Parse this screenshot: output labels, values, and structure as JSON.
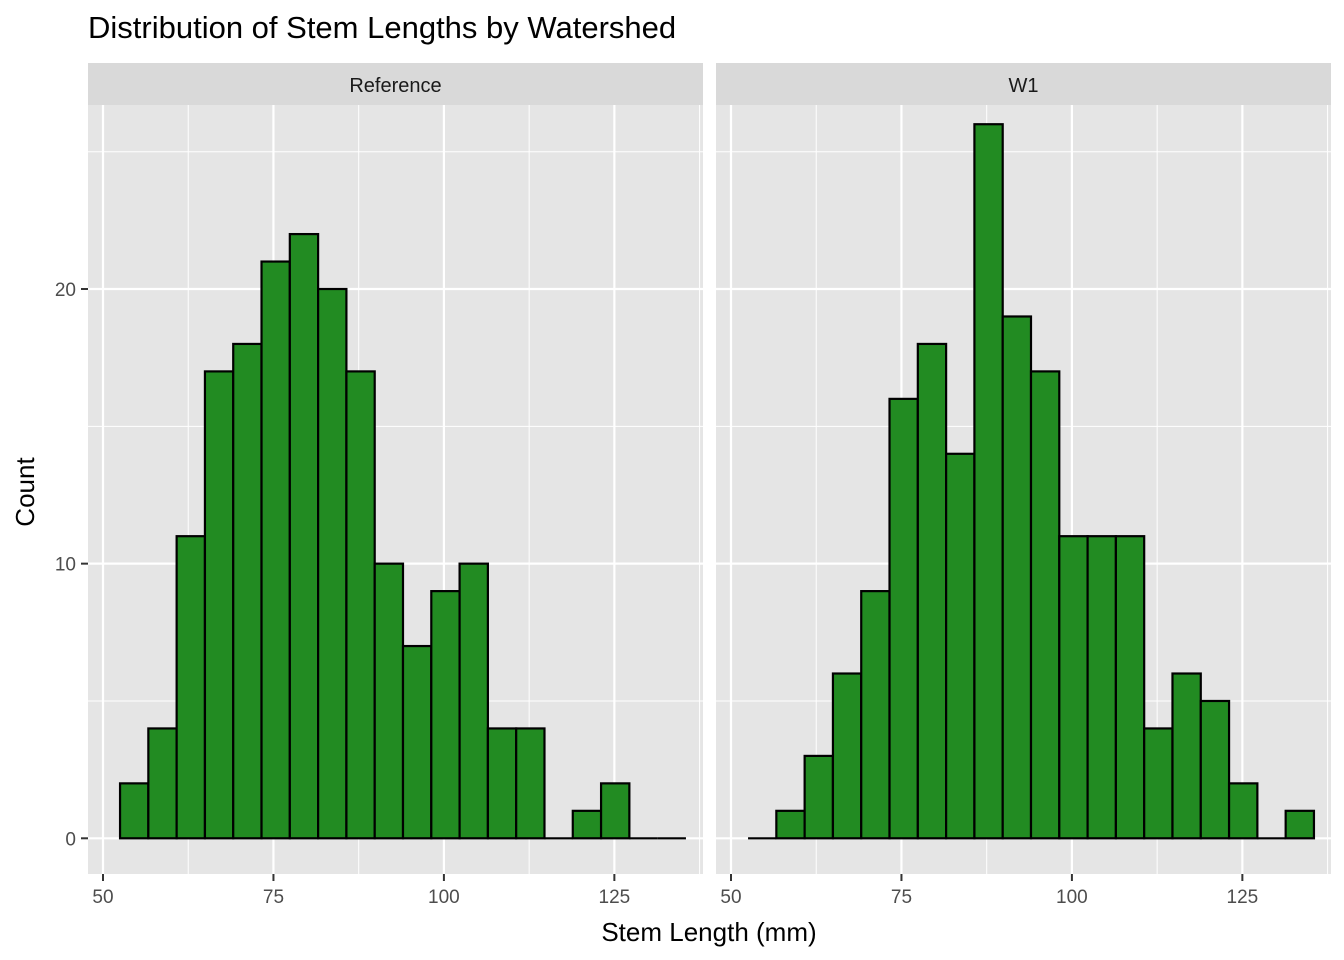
{
  "chart_data": {
    "type": "bar",
    "title": "Distribution of Stem Lengths by Watershed",
    "xlabel": "Stem Length (mm)",
    "ylabel": "Count",
    "xlim": [
      50,
      137
    ],
    "ylim": [
      0,
      26
    ],
    "x_ticks": [
      50,
      75,
      100,
      125
    ],
    "y_ticks": [
      0,
      10,
      20
    ],
    "grid": true,
    "bar_color": "#228B22",
    "bar_outline": "#000000",
    "panel_background": "#E5E5E5",
    "strip_background": "#D9D9D9",
    "bin_width": 4.15,
    "bin_start": 52.5,
    "panels": [
      {
        "label": "Reference",
        "counts": [
          2,
          4,
          11,
          17,
          18,
          21,
          22,
          20,
          17,
          10,
          7,
          9,
          10,
          4,
          4,
          0,
          1,
          2,
          0,
          0
        ]
      },
      {
        "label": "W1",
        "counts": [
          0,
          1,
          3,
          6,
          9,
          16,
          18,
          14,
          26,
          19,
          17,
          11,
          11,
          11,
          4,
          6,
          5,
          2,
          0,
          1
        ]
      }
    ]
  }
}
